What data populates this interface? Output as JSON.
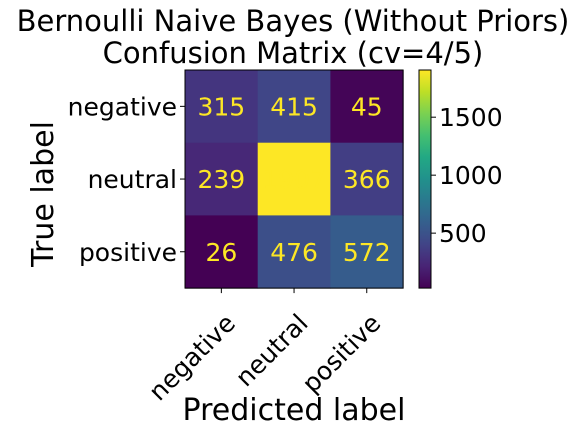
{
  "chart_data": {
    "type": "heatmap",
    "title_line1": "Bernoulli Naive Bayes (Without Priors)",
    "title_line2": "Confusion Matrix (cv=4/5)",
    "xlabel": "Predicted label",
    "ylabel": "True label",
    "x_categories": [
      "negative",
      "neutral",
      "positive"
    ],
    "y_categories": [
      "negative",
      "neutral",
      "positive"
    ],
    "matrix": [
      [
        315,
        415,
        45
      ],
      [
        239,
        1907,
        366
      ],
      [
        26,
        476,
        572
      ]
    ],
    "colormap": "viridis",
    "value_range": [
      26,
      1907
    ],
    "colorbar_ticks": [
      500,
      1000,
      1500
    ],
    "colorbar_tick_labels": [
      "500",
      "1000",
      "1500"
    ],
    "cell_text_color": "#fde725"
  }
}
